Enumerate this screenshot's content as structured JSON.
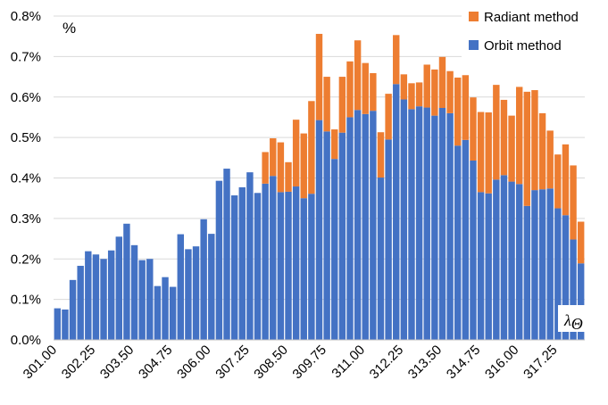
{
  "chart_data": {
    "type": "bar",
    "stacked": true,
    "unit_label": "%",
    "x_axis_label": "λ",
    "x_axis_label_subscript": "Θ",
    "ylim": [
      0,
      0.8
    ],
    "y_ticks": [
      "0.0%",
      "0.1%",
      "0.2%",
      "0.3%",
      "0.4%",
      "0.5%",
      "0.6%",
      "0.7%",
      "0.8%"
    ],
    "x_tick_labels": [
      "301.00",
      "302.25",
      "303.50",
      "304.75",
      "306.00",
      "307.25",
      "308.50",
      "309.75",
      "311.00",
      "312.25",
      "313.50",
      "314.75",
      "316.00",
      "317.25"
    ],
    "x_start": 301.0,
    "x_step": 0.25,
    "grid": true,
    "legend_position": "top-right",
    "colors": {
      "orbit": "#4472C4",
      "radiant": "#ED7D31"
    },
    "series": [
      {
        "name": "Orbit method",
        "values": [
          0.078,
          0.075,
          0.148,
          0.183,
          0.219,
          0.211,
          0.2,
          0.221,
          0.255,
          0.287,
          0.234,
          0.197,
          0.2,
          0.133,
          0.155,
          0.131,
          0.261,
          0.224,
          0.231,
          0.298,
          0.262,
          0.393,
          0.423,
          0.357,
          0.377,
          0.414,
          0.363,
          0.386,
          0.405,
          0.365,
          0.366,
          0.379,
          0.35,
          0.361,
          0.543,
          0.515,
          0.447,
          0.512,
          0.55,
          0.568,
          0.558,
          0.566,
          0.401,
          0.495,
          0.632,
          0.594,
          0.57,
          0.577,
          0.574,
          0.554,
          0.573,
          0.56,
          0.48,
          0.494,
          0.443,
          0.365,
          0.362,
          0.396,
          0.407,
          0.391,
          0.385,
          0.331,
          0.37,
          0.372,
          0.374,
          0.325,
          0.308,
          0.248,
          0.189
        ]
      },
      {
        "name": "Radiant method",
        "values": [
          0,
          0,
          0,
          0,
          0,
          0,
          0,
          0,
          0,
          0,
          0,
          0,
          0,
          0,
          0,
          0,
          0,
          0,
          0,
          0,
          0,
          0,
          0,
          0,
          0,
          0,
          0,
          0.078,
          0.093,
          0.123,
          0.073,
          0.165,
          0.16,
          0.229,
          0.213,
          0.135,
          0.073,
          0.138,
          0.138,
          0.172,
          0.126,
          0.093,
          0.112,
          0.113,
          0.121,
          0.062,
          0.064,
          0.059,
          0.106,
          0.114,
          0.126,
          0.104,
          0.168,
          0.16,
          0.156,
          0.198,
          0.2,
          0.234,
          0.186,
          0.163,
          0.24,
          0.282,
          0.247,
          0.188,
          0.143,
          0.133,
          0.175,
          0.183,
          0.103
        ]
      }
    ]
  }
}
